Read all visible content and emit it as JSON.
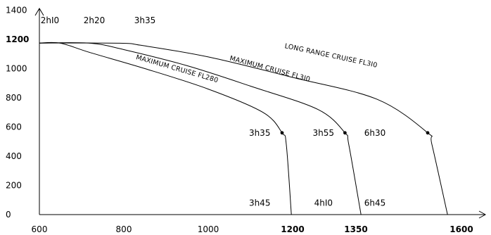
{
  "chart_data": {
    "type": "line",
    "title": "",
    "xlabel": "",
    "ylabel": "",
    "xlim": [
      600,
      1640
    ],
    "ylim": [
      0,
      1520
    ],
    "grid": false,
    "x_ticks": [
      {
        "value": 600,
        "label": "600",
        "bold": false
      },
      {
        "value": 800,
        "label": "800",
        "bold": false
      },
      {
        "value": 1000,
        "label": "1000",
        "bold": false
      },
      {
        "value": 1200,
        "label": "1200",
        "bold": true
      },
      {
        "value": 1350,
        "label": "1350",
        "bold": true
      },
      {
        "value": 1600,
        "label": "1600",
        "bold": true
      }
    ],
    "y_ticks": [
      {
        "value": 0,
        "label": "0",
        "bold": false
      },
      {
        "value": 200,
        "label": "200",
        "bold": false
      },
      {
        "value": 400,
        "label": "400",
        "bold": false
      },
      {
        "value": 600,
        "label": "600",
        "bold": false
      },
      {
        "value": 800,
        "label": "800",
        "bold": false
      },
      {
        "value": 1000,
        "label": "1000",
        "bold": false
      },
      {
        "value": 1200,
        "label": "1200",
        "bold": true
      },
      {
        "value": 1400,
        "label": "1400",
        "bold": false
      }
    ],
    "series": [
      {
        "name": "MAXIMUM CRUISE FL280",
        "points": [
          [
            600,
            1175
          ],
          [
            650,
            1174
          ],
          [
            720,
            1110
          ],
          [
            850,
            1000
          ],
          [
            1000,
            860
          ],
          [
            1130,
            700
          ],
          [
            1175,
            560
          ],
          [
            1185,
            480
          ],
          [
            1197,
            0
          ]
        ],
        "marker": [
          1175,
          560
        ]
      },
      {
        "name": "MAXIMUM CRUISE FL310",
        "points": [
          [
            600,
            1175
          ],
          [
            720,
            1174
          ],
          [
            800,
            1130
          ],
          [
            950,
            1020
          ],
          [
            1100,
            880
          ],
          [
            1260,
            720
          ],
          [
            1324,
            560
          ],
          [
            1333,
            480
          ],
          [
            1362,
            0
          ]
        ],
        "marker": [
          1324,
          560
        ]
      },
      {
        "name": "LONG RANGE CRUISE FL310",
        "points": [
          [
            600,
            1175
          ],
          [
            790,
            1174
          ],
          [
            840,
            1160
          ],
          [
            1000,
            1080
          ],
          [
            1200,
            940
          ],
          [
            1400,
            790
          ],
          [
            1520,
            560
          ],
          [
            1530,
            480
          ],
          [
            1567,
            0
          ]
        ],
        "marker": [
          1520,
          560
        ]
      }
    ],
    "curve_labels": [
      {
        "series": "LONG RANGE CRUISE FL310",
        "text": "LONG RANGE CRUISE FL3I0",
        "x": 1290,
        "y": 1075,
        "angle": 12
      },
      {
        "series": "MAXIMUM CRUISE FL310",
        "text": "MAXIMUM CRUISE FL3I0",
        "x": 1145,
        "y": 985,
        "angle": 15
      },
      {
        "series": "MAXIMUM CRUISE FL280",
        "text": "MAXIMUM CRUISE FL280",
        "x": 925,
        "y": 985,
        "angle": 16
      }
    ],
    "annotations": [
      {
        "text": "2hI0",
        "x": 625,
        "y": 1310
      },
      {
        "text": "2h20",
        "x": 730,
        "y": 1310
      },
      {
        "text": "3h35",
        "x": 850,
        "y": 1310
      },
      {
        "text": "3h35",
        "x": 1122,
        "y": 540
      },
      {
        "text": "3h55",
        "x": 1273,
        "y": 540
      },
      {
        "text": "6h30",
        "x": 1395,
        "y": 540
      },
      {
        "text": "3h45",
        "x": 1122,
        "y": 60
      },
      {
        "text": "4hI0",
        "x": 1273,
        "y": 60
      },
      {
        "text": "6h45",
        "x": 1395,
        "y": 60
      }
    ]
  }
}
